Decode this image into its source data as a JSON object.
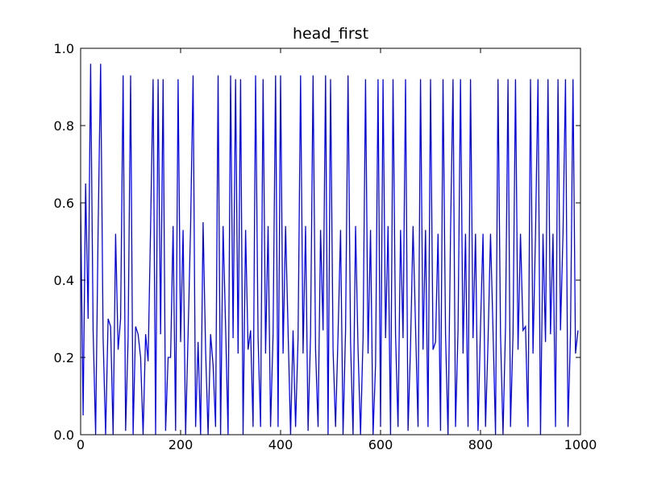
{
  "chart_data": {
    "type": "line",
    "title": "head_first",
    "color": "#0000ff",
    "x": [
      0,
      5,
      10,
      15,
      20,
      25,
      30,
      35,
      40,
      45,
      50,
      55,
      60,
      65,
      70,
      75,
      80,
      85,
      90,
      95,
      100,
      105,
      110,
      115,
      120,
      125,
      130,
      135,
      140,
      145,
      150,
      155,
      160,
      165,
      170,
      175,
      180,
      185,
      190,
      195,
      200,
      205,
      210,
      215,
      220,
      225,
      230,
      235,
      240,
      245,
      250,
      255,
      260,
      265,
      270,
      275,
      280,
      285,
      290,
      295,
      300,
      305,
      310,
      315,
      320,
      325,
      330,
      335,
      340,
      345,
      350,
      355,
      360,
      365,
      370,
      375,
      380,
      385,
      390,
      395,
      400,
      405,
      410,
      415,
      420,
      425,
      430,
      435,
      440,
      445,
      450,
      455,
      460,
      465,
      470,
      475,
      480,
      485,
      490,
      495,
      500,
      505,
      510,
      515,
      520,
      525,
      530,
      535,
      540,
      545,
      550,
      555,
      560,
      565,
      570,
      575,
      580,
      585,
      590,
      595,
      600,
      605,
      610,
      615,
      620,
      625,
      630,
      635,
      640,
      645,
      650,
      655,
      660,
      665,
      670,
      675,
      680,
      685,
      690,
      695,
      700,
      705,
      710,
      715,
      720,
      725,
      730,
      735,
      740,
      745,
      750,
      755,
      760,
      765,
      770,
      775,
      780,
      785,
      790,
      795,
      800,
      805,
      810,
      815,
      820,
      825,
      830,
      835,
      840,
      845,
      850,
      855,
      860,
      865,
      870,
      875,
      880,
      885,
      890,
      895,
      900,
      905,
      910,
      915,
      920,
      925,
      930,
      935,
      940,
      945,
      950,
      955,
      960,
      965,
      970,
      975,
      980,
      985,
      990,
      995
    ],
    "values": [
      0.6,
      0.05,
      0.65,
      0.3,
      0.96,
      0.27,
      0.0,
      0.53,
      0.96,
      0.25,
      0.0,
      0.3,
      0.28,
      0.0,
      0.52,
      0.22,
      0.3,
      0.93,
      0.01,
      0.25,
      0.93,
      0.0,
      0.28,
      0.26,
      0.2,
      0.0,
      0.26,
      0.19,
      0.54,
      0.92,
      0.0,
      0.92,
      0.26,
      0.92,
      0.01,
      0.2,
      0.2,
      0.54,
      0.01,
      0.92,
      0.24,
      0.53,
      0.0,
      0.26,
      0.54,
      0.93,
      0.02,
      0.24,
      0.0,
      0.55,
      0.22,
      0.0,
      0.26,
      0.18,
      0.02,
      0.93,
      0.0,
      0.54,
      0.28,
      0.0,
      0.93,
      0.25,
      0.92,
      0.21,
      0.92,
      0.0,
      0.53,
      0.22,
      0.27,
      0.02,
      0.93,
      0.25,
      0.02,
      0.92,
      0.21,
      0.54,
      0.02,
      0.26,
      0.93,
      0.02,
      0.93,
      0.21,
      0.54,
      0.27,
      0.0,
      0.27,
      0.02,
      0.25,
      0.93,
      0.21,
      0.54,
      0.01,
      0.26,
      0.93,
      0.22,
      0.02,
      0.53,
      0.27,
      0.93,
      0.0,
      0.92,
      0.22,
      0.02,
      0.26,
      0.53,
      0.0,
      0.27,
      0.93,
      0.24,
      0.0,
      0.54,
      0.22,
      0.0,
      0.25,
      0.92,
      0.21,
      0.53,
      0.0,
      0.18,
      0.92,
      0.02,
      0.92,
      0.25,
      0.54,
      0.0,
      0.92,
      0.26,
      0.02,
      0.53,
      0.25,
      0.92,
      0.01,
      0.23,
      0.54,
      0.28,
      0.02,
      0.92,
      0.22,
      0.53,
      0.02,
      0.92,
      0.22,
      0.24,
      0.52,
      0.01,
      0.92,
      0.26,
      0.0,
      0.52,
      0.92,
      0.02,
      0.27,
      0.92,
      0.21,
      0.52,
      0.02,
      0.92,
      0.25,
      0.52,
      0.01,
      0.28,
      0.52,
      0.02,
      0.24,
      0.52,
      0.27,
      0.0,
      0.92,
      0.26,
      0.0,
      0.28,
      0.92,
      0.02,
      0.26,
      0.92,
      0.22,
      0.52,
      0.27,
      0.28,
      0.02,
      0.92,
      0.21,
      0.52,
      0.92,
      0.0,
      0.52,
      0.24,
      0.92,
      0.26,
      0.52,
      0.02,
      0.92,
      0.27,
      0.52,
      0.92,
      0.02,
      0.26,
      0.92,
      0.21,
      0.27
    ],
    "xlim": [
      0,
      1000
    ],
    "xticks": [
      0,
      200,
      400,
      600,
      800,
      1000
    ],
    "ylim": [
      0,
      1
    ],
    "yticks": [
      {
        "value": 0,
        "label": "0.0"
      },
      0.2,
      0.4,
      0.6,
      0.8,
      {
        "value": 1,
        "label": "1.0"
      }
    ]
  }
}
